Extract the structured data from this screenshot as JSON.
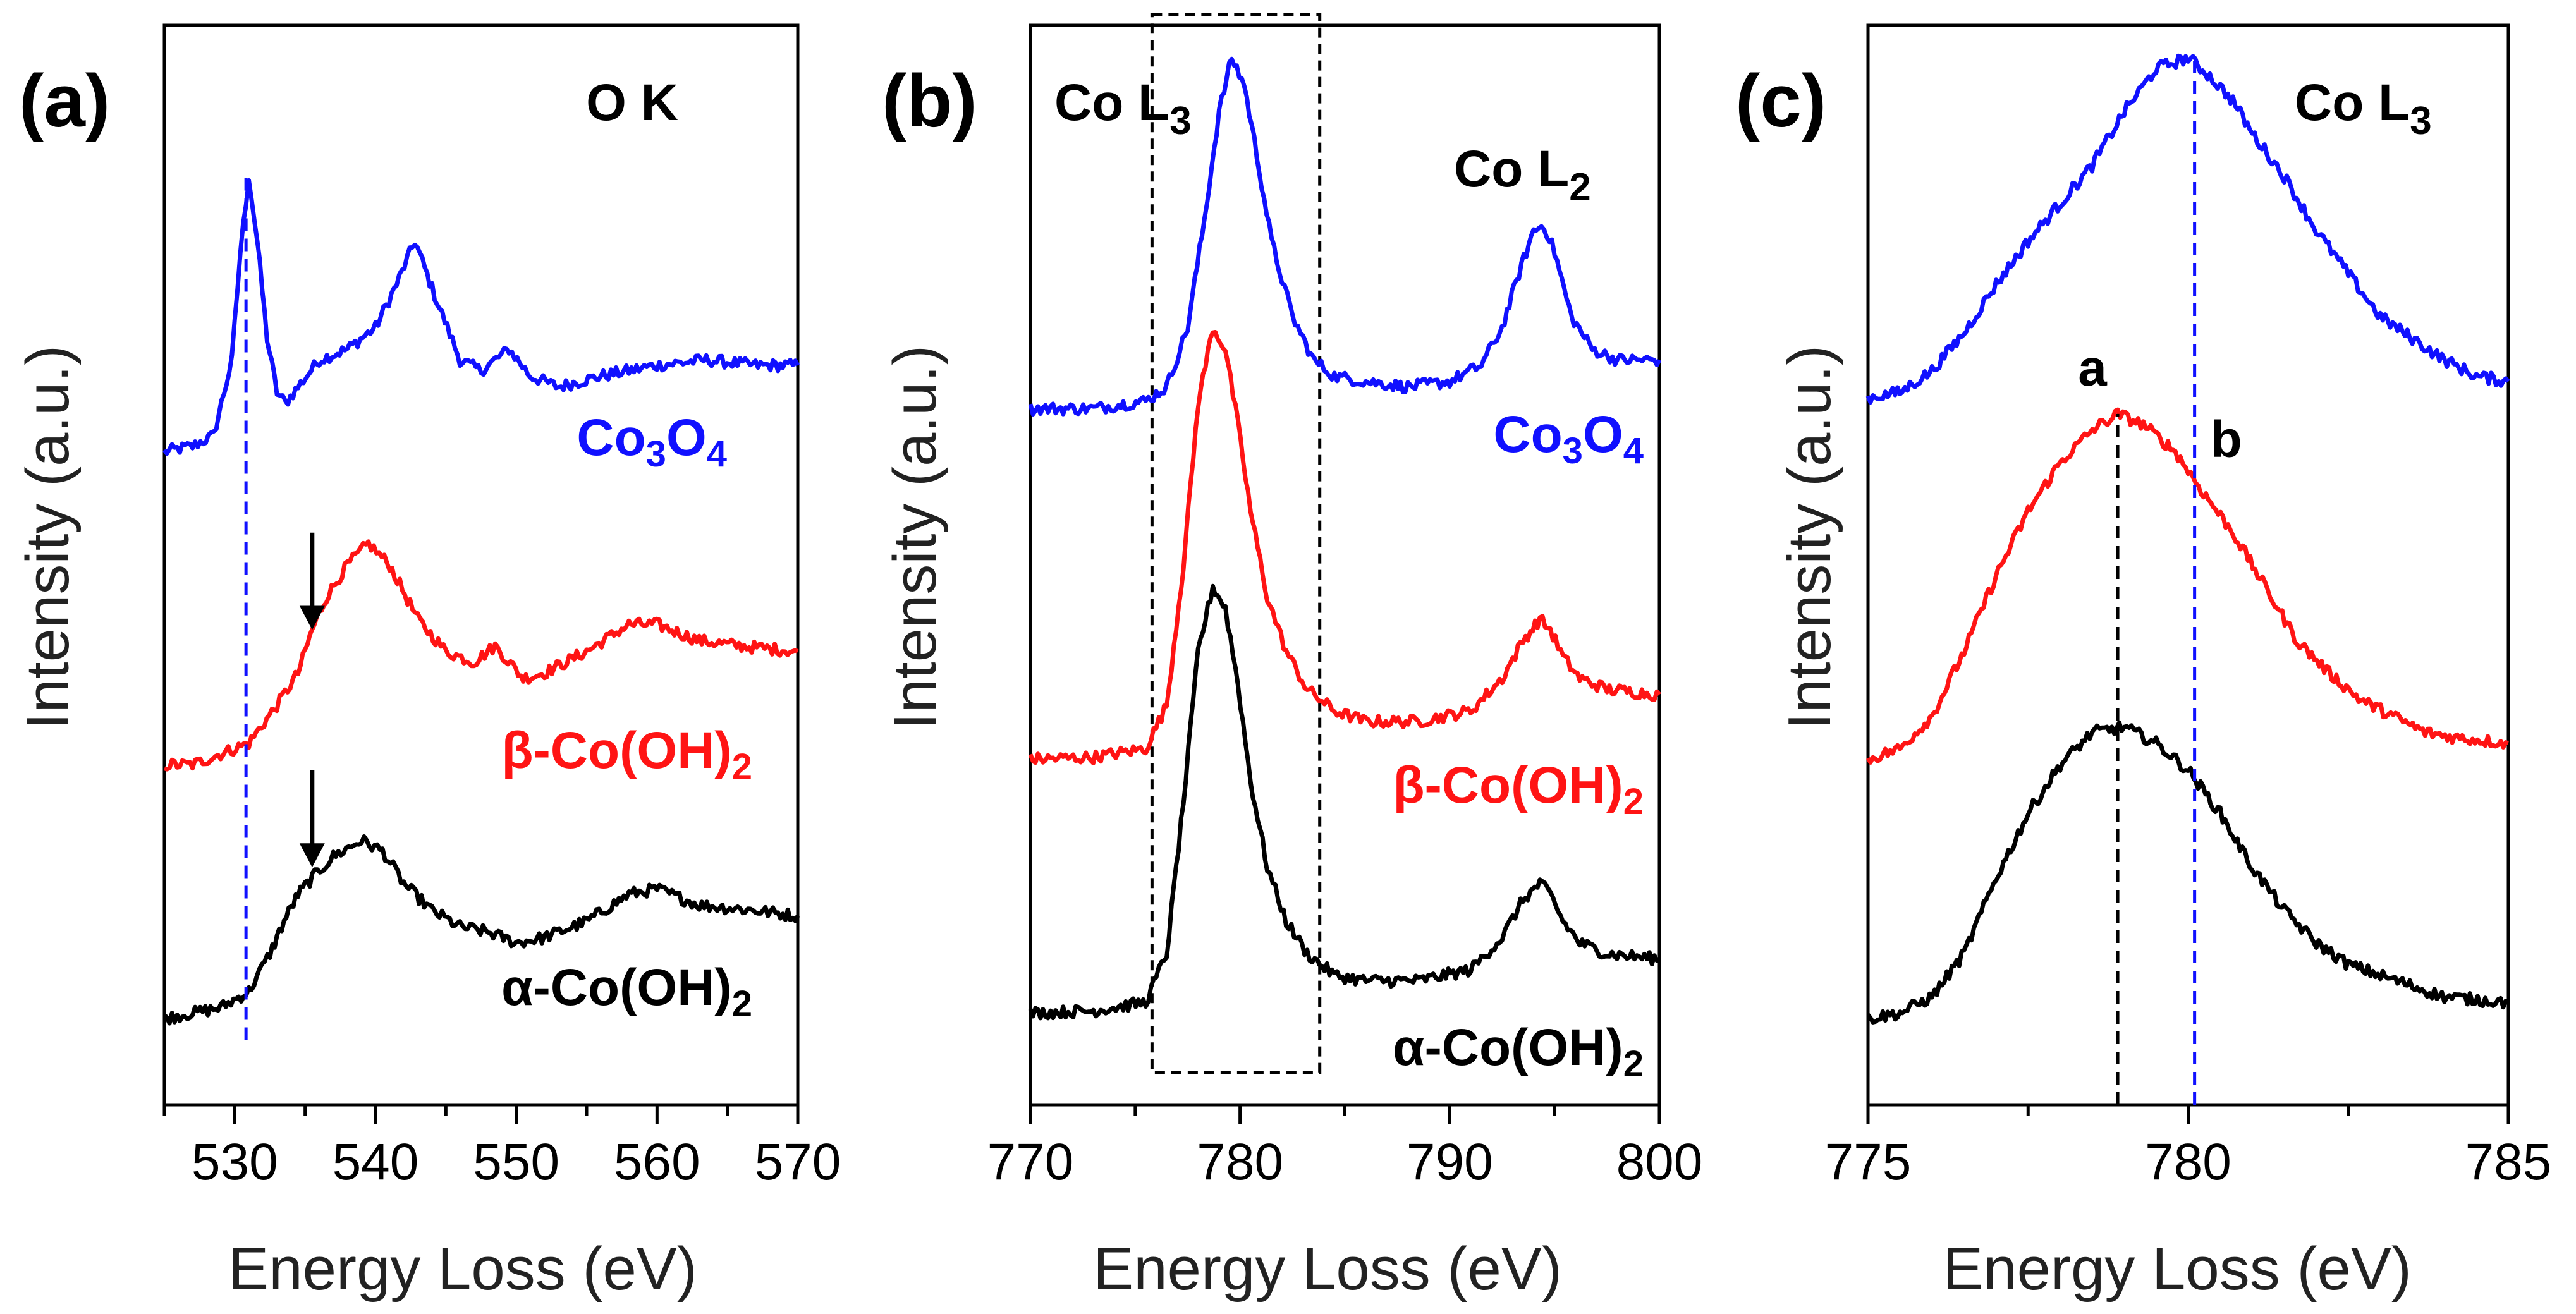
{
  "figure": {
    "ylabel": "Intensity (a.u.)",
    "xlabel": "Energy Loss (eV)",
    "colors": {
      "blue": "#1010ff",
      "red": "#ff1414",
      "black": "#000000"
    }
  },
  "chart_data": [
    {
      "panel": "(a)",
      "type": "line",
      "title": "O K",
      "xlabel": "Energy Loss (eV)",
      "ylabel": "Intensity (a.u.)",
      "xlim": [
        525,
        570
      ],
      "ylim": [
        0,
        1
      ],
      "xticks": [
        530,
        540,
        550,
        560,
        570
      ],
      "xtick_labels": [
        "530",
        "540",
        "550",
        "560",
        "570"
      ],
      "series": [
        {
          "name": "Co₃O₄",
          "label_main": "Co",
          "label_sub1": "3",
          "label_mid": "O",
          "label_sub2": "4",
          "color": "#1010ff",
          "x": [
            525,
            527,
            528.5,
            529.8,
            530.4,
            531,
            531.6,
            532.3,
            533,
            533.6,
            534.5,
            536,
            538,
            540,
            541.5,
            542.8,
            544.2,
            546,
            547.5,
            549.5,
            551,
            553,
            556,
            560,
            563.5,
            567,
            570
          ],
          "y": [
            0.605,
            0.61,
            0.62,
            0.69,
            0.79,
            0.86,
            0.8,
            0.71,
            0.66,
            0.65,
            0.665,
            0.69,
            0.7,
            0.72,
            0.76,
            0.8,
            0.75,
            0.69,
            0.68,
            0.7,
            0.675,
            0.665,
            0.675,
            0.685,
            0.69,
            0.685,
            0.685
          ]
        },
        {
          "name": "β-Co(OH)₂",
          "label_main": "β-Co(OH)",
          "label_sub1": "2",
          "color": "#ff1414",
          "x": [
            525,
            527,
            529,
            531,
            533,
            534.5,
            535.5,
            536.5,
            538,
            539.5,
            541,
            543,
            545,
            547,
            548.5,
            550.5,
            552,
            555,
            558,
            560,
            563,
            566,
            570
          ],
          "y": [
            0.315,
            0.315,
            0.325,
            0.335,
            0.37,
            0.4,
            0.44,
            0.47,
            0.5,
            0.52,
            0.5,
            0.45,
            0.42,
            0.41,
            0.425,
            0.395,
            0.4,
            0.42,
            0.445,
            0.445,
            0.43,
            0.425,
            0.42
          ]
        },
        {
          "name": "α-Co(OH)₂",
          "label_main": "α-Co(OH)",
          "label_sub1": "2",
          "color": "#000000",
          "x": [
            525,
            527,
            529,
            531,
            532.5,
            533.5,
            534.5,
            535.5,
            537,
            539,
            540.5,
            542,
            544,
            546,
            548,
            550,
            552,
            555,
            558,
            560,
            563,
            567,
            570
          ],
          "y": [
            0.08,
            0.085,
            0.09,
            0.105,
            0.14,
            0.17,
            0.195,
            0.21,
            0.23,
            0.245,
            0.235,
            0.205,
            0.18,
            0.165,
            0.16,
            0.15,
            0.155,
            0.17,
            0.195,
            0.2,
            0.185,
            0.18,
            0.175
          ]
        }
      ],
      "ref_line": {
        "x": 530.8,
        "color": "#1010ff"
      },
      "arrows": [
        {
          "x": 535.5,
          "y_from": 0.53,
          "y_to": 0.44
        },
        {
          "x": 535.5,
          "y_from": 0.31,
          "y_to": 0.22
        }
      ]
    },
    {
      "panel": "(b)",
      "type": "line",
      "title_left": "Co L",
      "title_left_sub": "3",
      "title_right": "Co L",
      "title_right_sub": "2",
      "xlabel": "Energy Loss (eV)",
      "ylabel": "Intensity (a.u.)",
      "xlim": [
        770,
        800
      ],
      "ylim": [
        0,
        1
      ],
      "xticks": [
        770,
        780,
        790,
        800
      ],
      "xtick_labels": [
        "770",
        "780",
        "790",
        "800"
      ],
      "series": [
        {
          "name": "Co₃O₄",
          "label_main": "Co",
          "label_sub1": "3",
          "label_mid": "O",
          "label_sub2": "4",
          "color": "#1010ff",
          "x": [
            770,
            773,
            775.5,
            776.5,
            777.5,
            778.3,
            779,
            779.6,
            780.2,
            780.8,
            781.5,
            782.5,
            783.5,
            784.5,
            786,
            788,
            790,
            791.5,
            792.5,
            793.3,
            794,
            794.5,
            795,
            795.8,
            796.8,
            798,
            800
          ],
          "y": [
            0.645,
            0.645,
            0.652,
            0.665,
            0.72,
            0.82,
            0.92,
            0.97,
            0.945,
            0.88,
            0.8,
            0.73,
            0.69,
            0.675,
            0.67,
            0.665,
            0.67,
            0.685,
            0.72,
            0.77,
            0.81,
            0.815,
            0.79,
            0.73,
            0.7,
            0.69,
            0.69
          ]
        },
        {
          "name": "β-Co(OH)₂",
          "label_main": "β-Co(OH)",
          "label_sub1": "2",
          "color": "#ff1414",
          "x": [
            770,
            773,
            775.5,
            776.5,
            777.3,
            778,
            778.7,
            779.3,
            779.9,
            780.5,
            781.3,
            782.2,
            783.2,
            784.5,
            786,
            788.5,
            791,
            792.5,
            793.5,
            794.3,
            794.8,
            795.4,
            796.2,
            797.5,
            800
          ],
          "y": [
            0.32,
            0.322,
            0.33,
            0.37,
            0.5,
            0.65,
            0.72,
            0.7,
            0.63,
            0.55,
            0.47,
            0.42,
            0.385,
            0.365,
            0.355,
            0.355,
            0.365,
            0.395,
            0.43,
            0.45,
            0.44,
            0.415,
            0.395,
            0.385,
            0.38
          ]
        },
        {
          "name": "α-Co(OH)₂",
          "label_main": "α-Co(OH)",
          "label_sub1": "2",
          "color": "#000000",
          "x": [
            770,
            773,
            775.5,
            776.5,
            777.3,
            778,
            778.7,
            779.3,
            779.9,
            780.5,
            781.3,
            782.2,
            783.2,
            784.5,
            786,
            788.5,
            791,
            792.5,
            793.5,
            794.3,
            794.8,
            795.4,
            796.2,
            797.5,
            800
          ],
          "y": [
            0.085,
            0.087,
            0.095,
            0.14,
            0.28,
            0.42,
            0.48,
            0.46,
            0.39,
            0.3,
            0.22,
            0.17,
            0.14,
            0.12,
            0.115,
            0.115,
            0.125,
            0.155,
            0.19,
            0.205,
            0.195,
            0.17,
            0.15,
            0.14,
            0.135
          ]
        }
      ],
      "highlight_box": {
        "x0": 775.8,
        "x1": 783.8,
        "y0": 0.03,
        "y1": 1.01
      }
    },
    {
      "panel": "(c)",
      "type": "line",
      "title": "Co L",
      "title_sub": "3",
      "xlabel": "Energy Loss (eV)",
      "ylabel": "Intensity (a.u.)",
      "xlim": [
        775,
        785
      ],
      "ylim": [
        0,
        1
      ],
      "xticks": [
        775,
        780,
        785
      ],
      "xtick_labels": [
        "775",
        "780",
        "785"
      ],
      "series": [
        {
          "name": "Co₃O₄",
          "color": "#1010ff",
          "x": [
            775,
            775.5,
            776,
            776.5,
            777,
            777.5,
            778,
            778.5,
            779,
            779.5,
            780,
            780.3,
            780.7,
            781,
            781.5,
            782,
            782.5,
            783,
            783.5,
            784,
            784.5,
            785
          ],
          "y": [
            0.655,
            0.66,
            0.68,
            0.715,
            0.76,
            0.8,
            0.835,
            0.87,
            0.92,
            0.96,
            0.97,
            0.955,
            0.93,
            0.9,
            0.86,
            0.81,
            0.77,
            0.73,
            0.71,
            0.69,
            0.675,
            0.67
          ]
        },
        {
          "name": "β-Co(OH)₂",
          "color": "#ff1414",
          "x": [
            775,
            775.5,
            776,
            776.5,
            777,
            777.5,
            778,
            778.5,
            778.9,
            779.3,
            779.8,
            780.2,
            780.7,
            781.2,
            781.7,
            782.2,
            782.7,
            783.2,
            783.7,
            784.2,
            785
          ],
          "y": [
            0.32,
            0.33,
            0.36,
            0.42,
            0.49,
            0.55,
            0.595,
            0.625,
            0.64,
            0.63,
            0.605,
            0.57,
            0.53,
            0.48,
            0.43,
            0.4,
            0.375,
            0.36,
            0.345,
            0.34,
            0.335
          ]
        },
        {
          "name": "α-Co(OH)₂",
          "color": "#000000",
          "x": [
            775,
            775.5,
            776,
            776.5,
            777,
            777.5,
            778,
            778.5,
            779,
            779.5,
            780,
            780.5,
            781,
            781.5,
            782,
            782.5,
            783,
            783.5,
            784,
            785
          ],
          "y": [
            0.08,
            0.085,
            0.1,
            0.14,
            0.21,
            0.27,
            0.315,
            0.345,
            0.35,
            0.335,
            0.31,
            0.27,
            0.22,
            0.18,
            0.15,
            0.13,
            0.12,
            0.11,
            0.1,
            0.095
          ]
        }
      ],
      "ref_lines": [
        {
          "label": "a",
          "x": 778.9,
          "y_top": 0.64,
          "color": "#000000"
        },
        {
          "label": "b",
          "x": 780.1,
          "y_top": 0.97,
          "color": "#1010ff"
        }
      ]
    }
  ]
}
